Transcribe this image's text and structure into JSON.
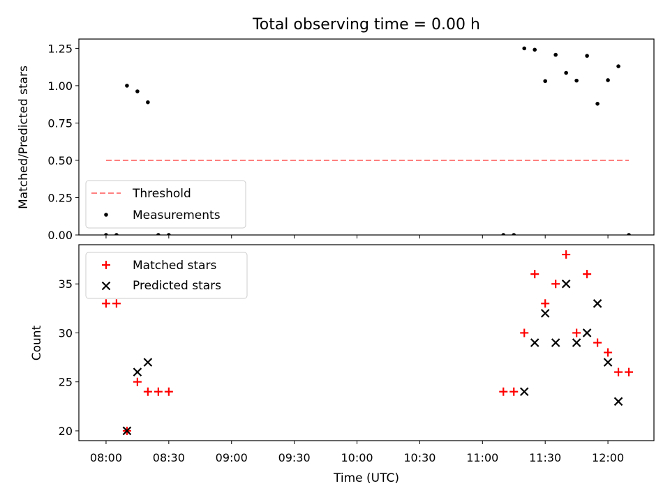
{
  "chart_data": [
    {
      "type": "scatter",
      "title": "Total observing time = 0.00 h",
      "xlabel": "",
      "ylabel": "Matched/Predicted stars",
      "ylim": [
        0,
        1.3125
      ],
      "yticks": [
        "0.00",
        "0.25",
        "0.50",
        "0.75",
        "1.00",
        "1.25"
      ],
      "legend_position": "lower-left",
      "threshold": {
        "name": "Threshold",
        "value": 0.5,
        "x_range": [
          "08:00",
          "12:10"
        ],
        "color": "#ff7f7f",
        "style": "dashed"
      },
      "series": [
        {
          "name": "Measurements",
          "color": "#000000",
          "marker": "dot",
          "x": [
            "08:00",
            "08:05",
            "08:10",
            "08:15",
            "08:20",
            "08:25",
            "08:30",
            "11:10",
            "11:15",
            "11:20",
            "11:25",
            "11:30",
            "11:35",
            "11:40",
            "11:45",
            "11:50",
            "11:55",
            "12:00",
            "12:05",
            "12:10"
          ],
          "y": [
            0,
            0,
            1.0,
            0.962,
            0.889,
            0,
            0,
            0,
            0,
            1.25,
            1.241,
            1.031,
            1.207,
            1.086,
            1.034,
            1.2,
            0.879,
            1.037,
            1.13,
            0
          ]
        }
      ]
    },
    {
      "type": "scatter",
      "title": "",
      "xlabel": "Time (UTC)",
      "ylabel": "Count",
      "xlim": [
        "07:47",
        "12:22"
      ],
      "xticks": [
        "08:00",
        "08:30",
        "09:00",
        "09:30",
        "10:00",
        "10:30",
        "11:00",
        "11:30",
        "12:00"
      ],
      "ylim": [
        19,
        39
      ],
      "yticks": [
        "20",
        "25",
        "30",
        "35"
      ],
      "legend_position": "top-left",
      "series": [
        {
          "name": "Matched stars",
          "color": "#ff0000",
          "marker": "plus",
          "x": [
            "08:00",
            "08:05",
            "08:10",
            "08:15",
            "08:20",
            "08:25",
            "08:30",
            "11:10",
            "11:15",
            "11:20",
            "11:25",
            "11:30",
            "11:35",
            "11:40",
            "11:45",
            "11:50",
            "11:55",
            "12:00",
            "12:05",
            "12:10"
          ],
          "y": [
            33,
            33,
            20,
            25,
            24,
            24,
            24,
            24,
            24,
            30,
            36,
            33,
            35,
            38,
            30,
            36,
            29,
            28,
            26,
            26
          ]
        },
        {
          "name": "Predicted stars",
          "color": "#000000",
          "marker": "x",
          "x": [
            "08:10",
            "08:15",
            "08:20",
            "11:20",
            "11:25",
            "11:30",
            "11:35",
            "11:40",
            "11:45",
            "11:50",
            "11:55",
            "12:00",
            "12:05"
          ],
          "y": [
            20,
            26,
            27,
            24,
            29,
            32,
            29,
            35,
            29,
            30,
            33,
            27,
            23
          ]
        }
      ]
    }
  ]
}
